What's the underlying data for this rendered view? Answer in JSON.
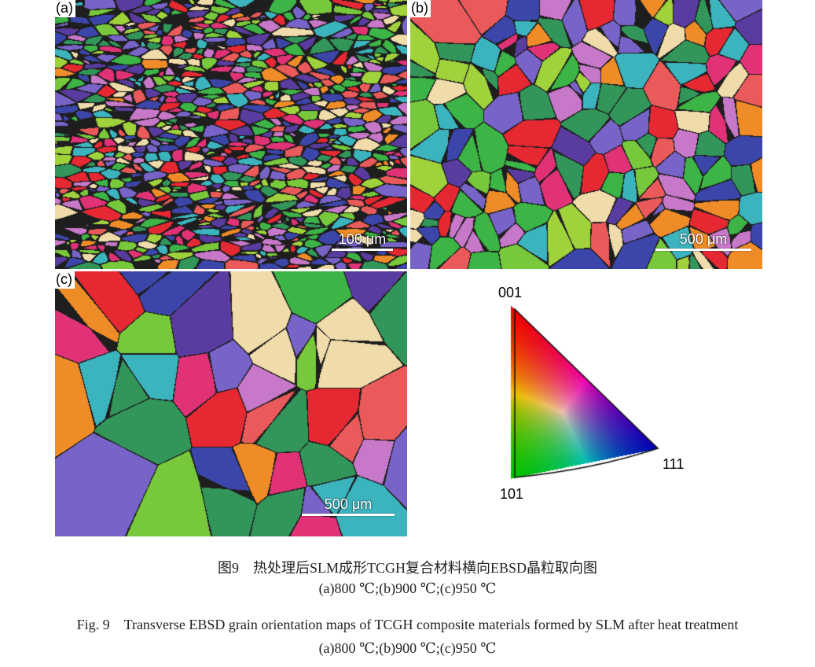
{
  "panels": [
    {
      "label": "(a)",
      "scale_bar": "100 μm"
    },
    {
      "label": "(b)",
      "scale_bar": "500 μm"
    },
    {
      "label": "(c)",
      "scale_bar": "500 μm"
    }
  ],
  "ipf_legend": {
    "corner_001": "001",
    "corner_101": "101",
    "corner_111": "111",
    "colors": {
      "001": "#e8202a",
      "101": "#3cb44a",
      "111": "#3a40a8"
    }
  },
  "caption": {
    "cn_title": "图9　热处理后SLM成形TCGH复合材料横向EBSD晶粒取向图",
    "cn_sub": "(a)800 ℃;(b)900 ℃;(c)950 ℃",
    "en_title": "Fig. 9　Transverse EBSD grain orientation maps of TCGH composite materials formed by SLM after heat treatment",
    "en_sub": "(a)800 ℃;(b)900 ℃;(c)950 ℃"
  }
}
